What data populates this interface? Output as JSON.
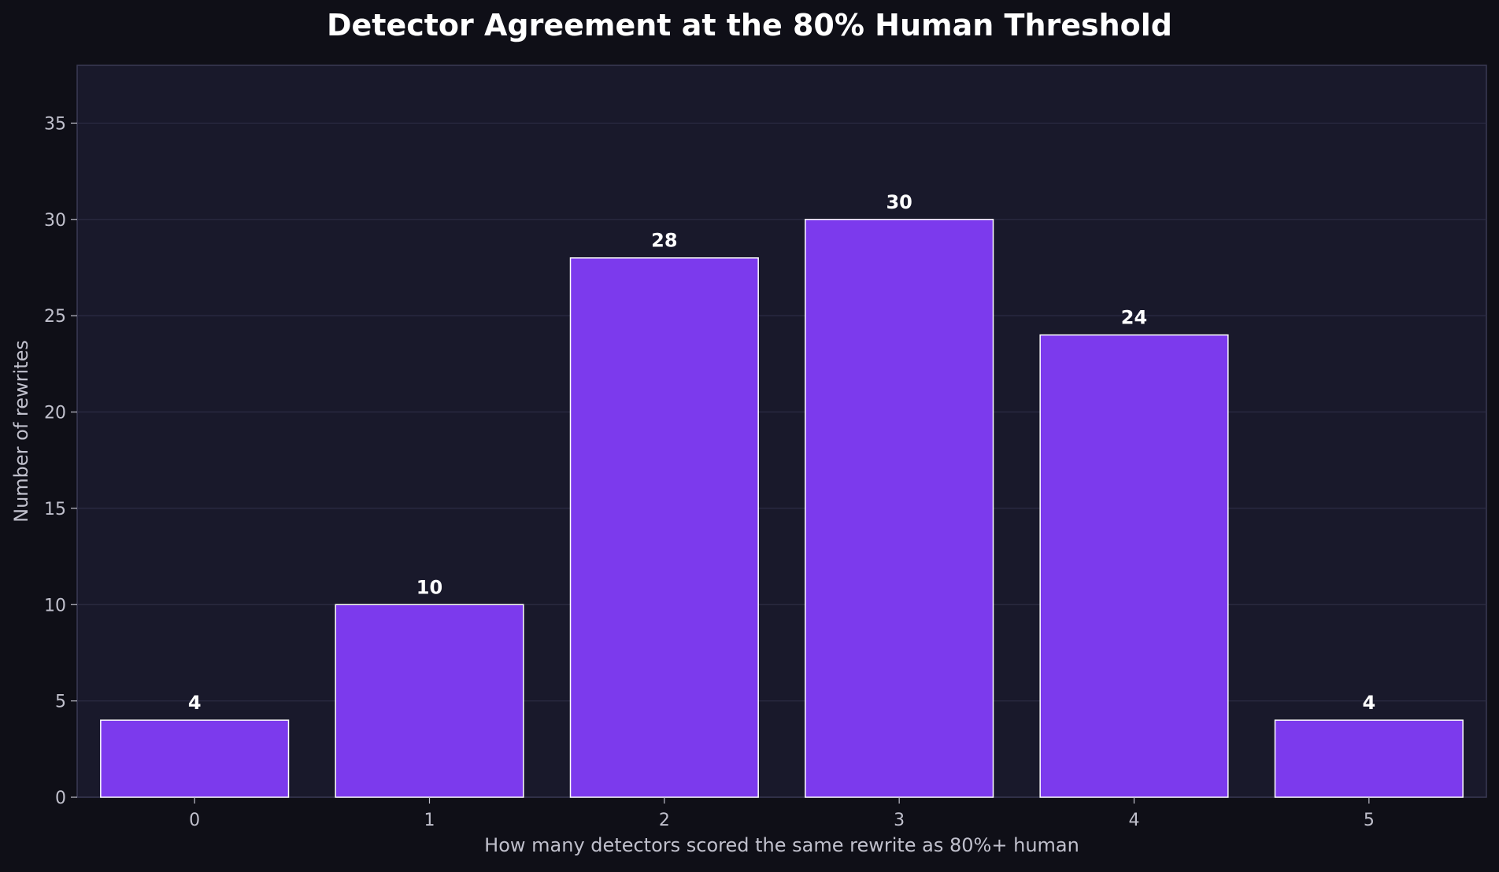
{
  "colors": {
    "page_bg": "#0f0f17",
    "plot_bg": "#19192b",
    "bar_fill": "#7c3aed",
    "bar_edge": "#ffffff",
    "grid": "#2c2c44",
    "text": "#ffffff",
    "muted_text": "#c0c0cc",
    "axis": "#3a3a55"
  },
  "chart_data": {
    "type": "bar",
    "title": "Detector Agreement at the 80% Human Threshold",
    "xlabel": "How many detectors scored the same rewrite as 80%+ human",
    "ylabel": "Number of rewrites",
    "categories": [
      "0",
      "1",
      "2",
      "3",
      "4",
      "5"
    ],
    "values": [
      4,
      10,
      28,
      30,
      24,
      4
    ],
    "data_labels": [
      "4",
      "10",
      "28",
      "30",
      "24",
      "4"
    ],
    "ylim": [
      0,
      38
    ],
    "yticks": [
      0,
      5,
      10,
      15,
      20,
      25,
      30,
      35
    ],
    "grid": true,
    "legend": "none"
  }
}
